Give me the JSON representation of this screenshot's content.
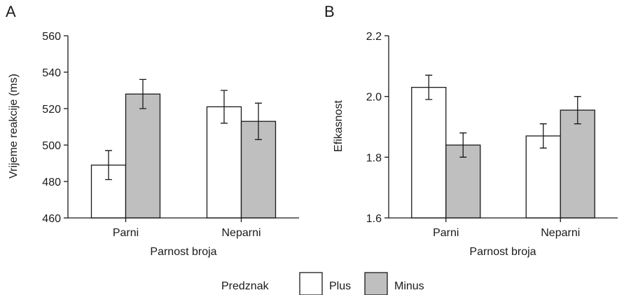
{
  "legend": {
    "title": "Predznak",
    "items": [
      {
        "label": "Plus",
        "color": "#ffffff"
      },
      {
        "label": "Minus",
        "color": "#bfbfbf"
      }
    ]
  },
  "chart_data": [
    {
      "type": "bar",
      "panel_label": "A",
      "categories": [
        "Parni",
        "Neparni"
      ],
      "xlabel": "Parnost broja",
      "ylabel": "Vrijeme reakcije (ms)",
      "ylim": [
        460,
        560
      ],
      "yticks": [
        460,
        480,
        500,
        520,
        540,
        560
      ],
      "ytick_labels": [
        "460",
        "480",
        "500",
        "520",
        "540",
        "560"
      ],
      "grid": false,
      "series": [
        {
          "name": "Plus",
          "color": "#ffffff",
          "values": [
            489,
            521
          ],
          "err_low": [
            481,
            512
          ],
          "err_high": [
            497,
            530
          ]
        },
        {
          "name": "Minus",
          "color": "#bfbfbf",
          "values": [
            528,
            513
          ],
          "err_low": [
            520,
            503
          ],
          "err_high": [
            536,
            523
          ]
        }
      ]
    },
    {
      "type": "bar",
      "panel_label": "B",
      "categories": [
        "Parni",
        "Neparni"
      ],
      "xlabel": "Parnost broja",
      "ylabel": "Efikasnost",
      "ylim": [
        1.6,
        2.2
      ],
      "yticks": [
        1.6,
        1.8,
        2.0,
        2.2
      ],
      "ytick_labels": [
        "1.6",
        "1.8",
        "2.0",
        "2.2"
      ],
      "grid": false,
      "series": [
        {
          "name": "Plus",
          "color": "#ffffff",
          "values": [
            2.03,
            1.87
          ],
          "err_low": [
            1.99,
            1.83
          ],
          "err_high": [
            2.07,
            1.91
          ]
        },
        {
          "name": "Minus",
          "color": "#bfbfbf",
          "values": [
            1.84,
            1.955
          ],
          "err_low": [
            1.8,
            1.91
          ],
          "err_high": [
            1.88,
            2.0
          ]
        }
      ]
    }
  ]
}
